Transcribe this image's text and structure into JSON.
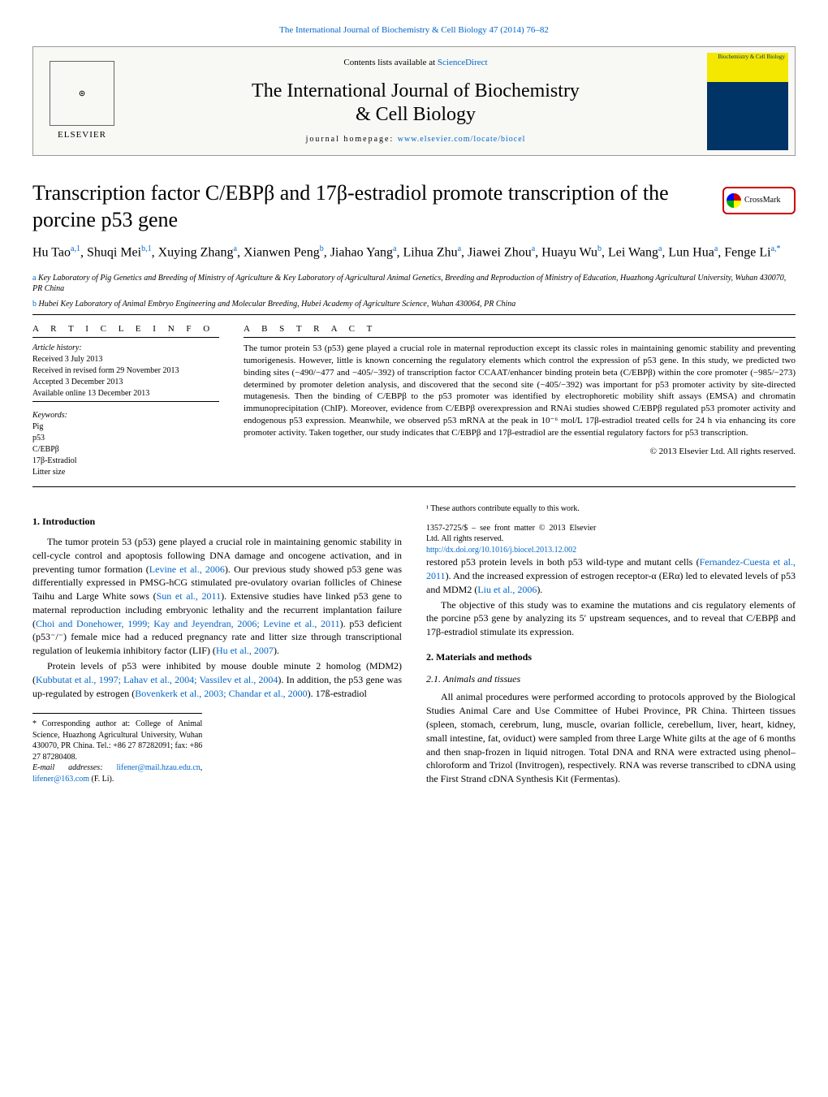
{
  "top_citation": "The International Journal of Biochemistry & Cell Biology 47 (2014) 76–82",
  "header": {
    "contents_prefix": "Contents lists available at ",
    "contents_link": "ScienceDirect",
    "journal_title_line1": "The International Journal of Biochemistry",
    "journal_title_line2": "& Cell Biology",
    "homepage_prefix": "journal homepage: ",
    "homepage_link": "www.elsevier.com/locate/biocel",
    "publisher": "ELSEVIER",
    "cover_text": "Biochemistry & Cell Biology"
  },
  "crossmark_label": "CrossMark",
  "title": "Transcription factor C/EBPβ and 17β-estradiol promote transcription of the porcine p53 gene",
  "authors_html": "Hu Tao<sup>a,1</sup>, Shuqi Mei<sup>b,1</sup>, Xuying Zhang<sup>a</sup>, Xianwen Peng<sup>b</sup>, Jiahao Yang<sup>a</sup>, Lihua Zhu<sup>a</sup>, Jiawei Zhou<sup>a</sup>, Huayu Wu<sup>b</sup>, Lei Wang<sup>a</sup>, Lun Hua<sup>a</sup>, Fenge Li<sup>a,*</sup>",
  "affiliations": {
    "a": "Key Laboratory of Pig Genetics and Breeding of Ministry of Agriculture & Key Laboratory of Agricultural Animal Genetics, Breeding and Reproduction of Ministry of Education, Huazhong Agricultural University, Wuhan 430070, PR China",
    "b": "Hubei Key Laboratory of Animal Embryo Engineering and Molecular Breeding, Hubei Academy of Agriculture Science, Wuhan 430064, PR China"
  },
  "article_info": {
    "header": "A R T I C L E   I N F O",
    "history_label": "Article history:",
    "received": "Received 3 July 2013",
    "revised": "Received in revised form 29 November 2013",
    "accepted": "Accepted 3 December 2013",
    "online": "Available online 13 December 2013",
    "keywords_label": "Keywords:",
    "keywords": [
      "Pig",
      "p53",
      "C/EBPβ",
      "17β-Estradiol",
      "Litter size"
    ]
  },
  "abstract": {
    "header": "A B S T R A C T",
    "text": "The tumor protein 53 (p53) gene played a crucial role in maternal reproduction except its classic roles in maintaining genomic stability and preventing tumorigenesis. However, little is known concerning the regulatory elements which control the expression of p53 gene. In this study, we predicted two binding sites (−490/−477 and −405/−392) of transcription factor CCAAT/enhancer binding protein beta (C/EBPβ) within the core promoter (−985/−273) determined by promoter deletion analysis, and discovered that the second site (−405/−392) was important for p53 promoter activity by site-directed mutagenesis. Then the binding of C/EBPβ to the p53 promoter was identified by electrophoretic mobility shift assays (EMSA) and chromatin immunoprecipitation (ChIP). Moreover, evidence from C/EBPβ overexpression and RNAi studies showed C/EBPβ regulated p53 promoter activity and endogenous p53 expression. Meanwhile, we observed p53 mRNA at the peak in 10⁻⁶ mol/L 17β-estradiol treated cells for 24 h via enhancing its core promoter activity. Taken together, our study indicates that C/EBPβ and 17β-estradiol are the essential regulatory factors for p53 transcription.",
    "copyright": "© 2013 Elsevier Ltd. All rights reserved."
  },
  "sections": {
    "intro_heading": "1.  Introduction",
    "intro_p1": "The tumor protein 53 (p53) gene played a crucial role in maintaining genomic stability in cell-cycle control and apoptosis following DNA damage and oncogene activation, and in preventing tumor formation (Levine et al., 2006). Our previous study showed p53 gene was differentially expressed in PMSG-hCG stimulated pre-ovulatory ovarian follicles of Chinese Taihu and Large White sows (Sun et al., 2011). Extensive studies have linked p53 gene to maternal reproduction including embryonic lethality and the recurrent implantation failure (Choi and Donehower, 1999; Kay and Jeyendran, 2006; Levine et al., 2011). p53 deficient (p53⁻/⁻) female mice had a reduced pregnancy rate and litter size through transcriptional regulation of leukemia inhibitory factor (LIF) (Hu et al., 2007).",
    "intro_p2": "Protein levels of p53 were inhibited by mouse double minute 2 homolog (MDM2) (Kubbutat et al., 1997; Lahav et al., 2004; Vassilev et al., 2004). In addition, the p53 gene was up-regulated by estrogen (Bovenkerk et al., 2003; Chandar et al., 2000). 17ß-estradiol",
    "intro_p3": "restored p53 protein levels in both p53 wild-type and mutant cells (Fernandez-Cuesta et al., 2011). And the increased expression of estrogen receptor-α (ERα) led to elevated levels of p53 and MDM2 (Liu et al., 2006).",
    "intro_p4": "The objective of this study was to examine the mutations and cis regulatory elements of the porcine p53 gene by analyzing its 5′ upstream sequences, and to reveal that C/EBPβ and 17β-estradiol stimulate its expression.",
    "methods_heading": "2.  Materials and methods",
    "methods_sub1": "2.1.  Animals and tissues",
    "methods_p1": "All animal procedures were performed according to protocols approved by the Biological Studies Animal Care and Use Committee of Hubei Province, PR China. Thirteen tissues (spleen, stomach, cerebrum, lung, muscle, ovarian follicle, cerebellum, liver, heart, kidney, small intestine, fat, oviduct) were sampled from three Large White gilts at the age of 6 months and then snap-frozen in liquid nitrogen. Total DNA and RNA were extracted using phenol–chloroform and Trizol (Invitrogen), respectively. RNA was reverse transcribed to cDNA using the First Strand cDNA Synthesis Kit (Fermentas)."
  },
  "footnotes": {
    "corresponding": "* Corresponding author at: College of Animal Science, Huazhong Agricultural University, Wuhan 430070, PR China. Tel.: +86 27 87282091; fax: +86 27 87280408.",
    "email_label": "E-mail addresses: ",
    "email1": "lifener@mail.hzau.edu.cn",
    "email2": "lifener@163.com",
    "email_name": " (F. Li).",
    "equal": "¹ These authors contribute equally to this work.",
    "front_matter": "1357-2725/$ – see front matter © 2013 Elsevier Ltd. All rights reserved.",
    "doi": "http://dx.doi.org/10.1016/j.biocel.2013.12.002"
  },
  "colors": {
    "link": "#0066cc",
    "text": "#000000",
    "bg": "#ffffff",
    "cover_yellow": "#f4e800",
    "cover_blue": "#003366",
    "crossmark_border": "#c00"
  }
}
